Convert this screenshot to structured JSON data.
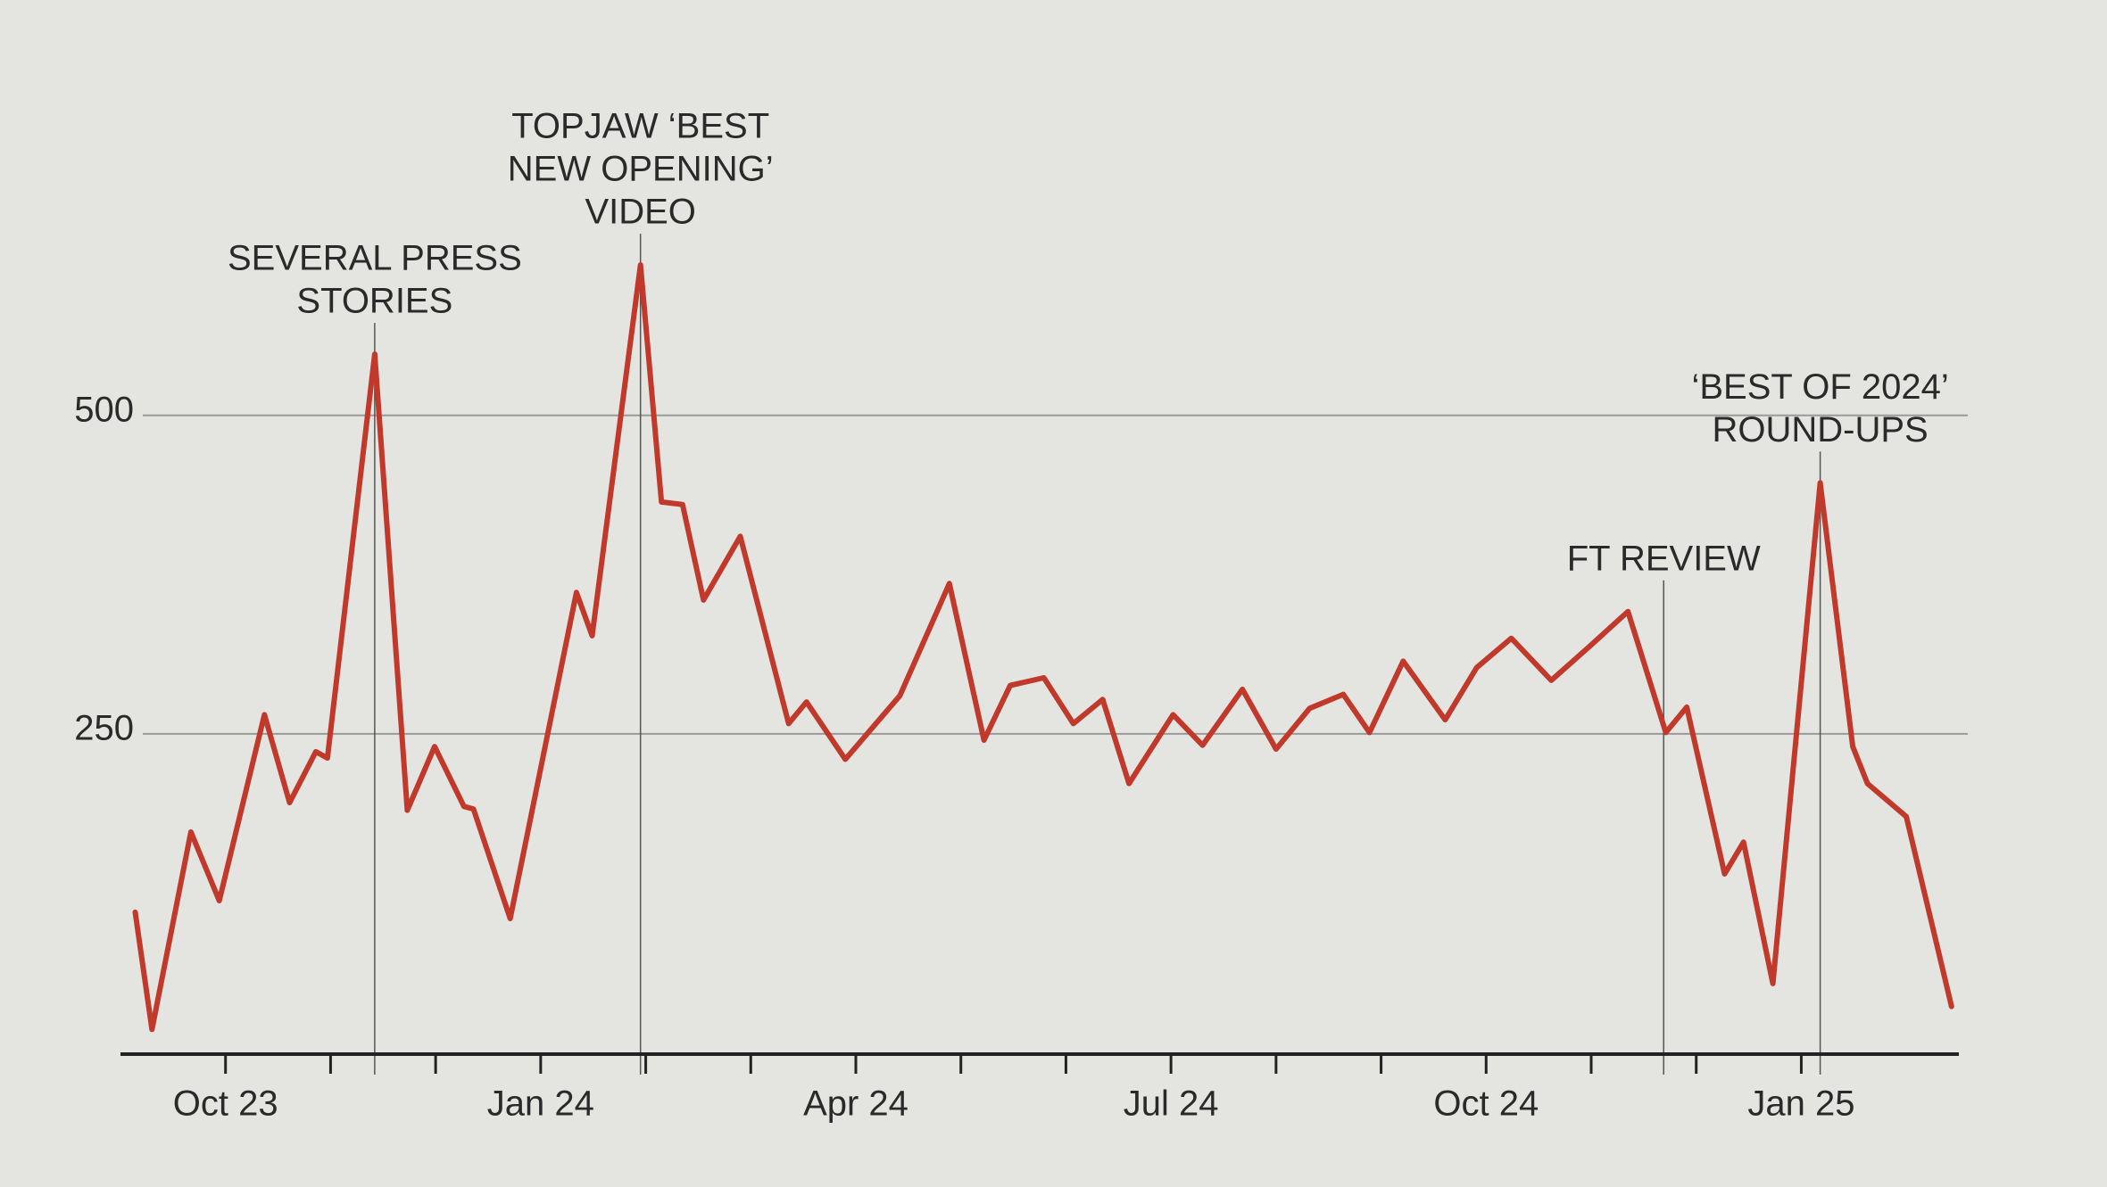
{
  "chart_data": {
    "type": "line",
    "color": "#c0392b",
    "x": [
      -0.86,
      -0.7,
      -0.33,
      -0.06,
      0.37,
      0.61,
      0.86,
      0.97,
      1.42,
      1.73,
      1.99,
      2.27,
      2.36,
      2.71,
      3.34,
      3.49,
      3.95,
      4.15,
      4.35,
      4.55,
      4.9,
      5.36,
      5.53,
      5.9,
      6.42,
      6.89,
      7.22,
      7.47,
      7.79,
      8.07,
      8.35,
      8.6,
      9.02,
      9.3,
      9.68,
      10.0,
      10.32,
      10.64,
      10.89,
      11.21,
      11.61,
      11.91,
      12.24,
      12.62,
      12.99,
      13.35,
      13.71,
      13.91,
      14.27,
      14.45,
      14.73,
      15.18,
      15.49,
      15.63,
      16.0,
      16.43
    ],
    "values": [
      110,
      18,
      173,
      119,
      265,
      196,
      236,
      231,
      548,
      190,
      240,
      193,
      191,
      105,
      361,
      327,
      618,
      432,
      430,
      355,
      405,
      258,
      275,
      230,
      280,
      368,
      245,
      288,
      294,
      258,
      277,
      211,
      265,
      241,
      285,
      238,
      270,
      281,
      251,
      307,
      261,
      302,
      325,
      292,
      319,
      346,
      251,
      271,
      140,
      165,
      54,
      447,
      240,
      211,
      185,
      36
    ],
    "xlim": [
      -1,
      16.5
    ],
    "xticks": [
      {
        "value": 0,
        "label": "Oct 23"
      },
      {
        "value": 3,
        "label": "Jan 24"
      },
      {
        "value": 6,
        "label": "Apr 24"
      },
      {
        "value": 9,
        "label": "Jul 24"
      },
      {
        "value": 12,
        "label": "Oct 24"
      },
      {
        "value": 15,
        "label": "Jan 25"
      }
    ],
    "xminorticks": [
      1,
      2,
      4,
      5,
      7,
      8,
      10,
      11,
      13,
      14
    ],
    "ylim": [
      0,
      700
    ],
    "yticks": [
      250,
      500
    ],
    "grid": true,
    "annotations": [
      {
        "x": 1.42,
        "lines": [
          "SEVERAL PRESS",
          "STORIES"
        ]
      },
      {
        "x": 3.95,
        "lines": [
          "TOPJAW ‘BEST",
          "NEW OPENING’",
          "VIDEO"
        ]
      },
      {
        "x": 13.69,
        "lines": [
          "FT REVIEW"
        ]
      },
      {
        "x": 15.18,
        "lines": [
          "‘BEST OF 2024’",
          "ROUND-UPS"
        ]
      }
    ]
  }
}
